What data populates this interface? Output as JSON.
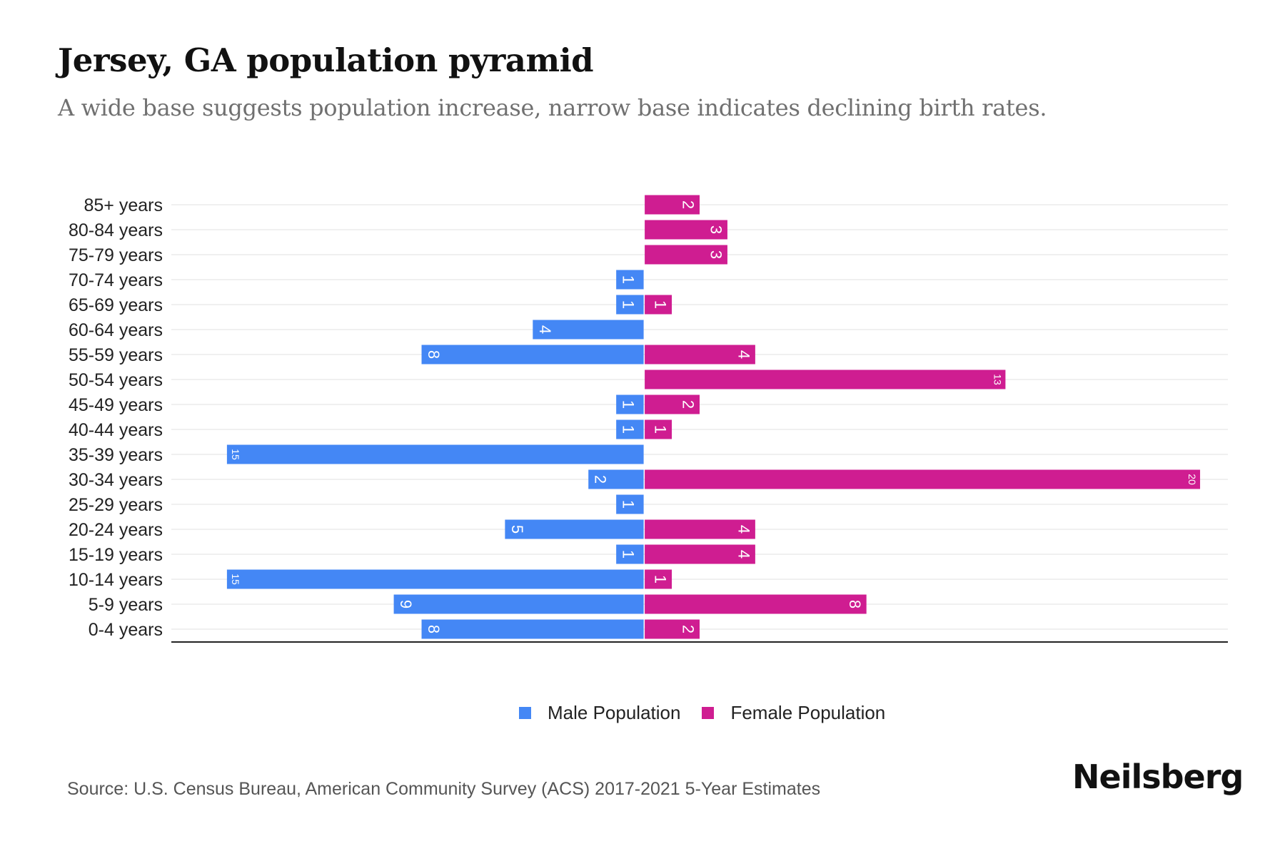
{
  "header": {
    "title": "Jersey, GA population pyramid",
    "subtitle": "A wide base suggests population increase, narrow base indicates declining birth rates."
  },
  "colors": {
    "male": "#4487F5",
    "female": "#CF1D91"
  },
  "chart_data": {
    "type": "bar",
    "orientation": "horizontal-diverging",
    "title": "Jersey, GA population pyramid",
    "subtitle": "A wide base suggests population increase, narrow base indicates declining birth rates.",
    "xlabel": "",
    "ylabel": "",
    "categories": [
      "85+ years",
      "80-84 years",
      "75-79 years",
      "70-74 years",
      "65-69 years",
      "60-64 years",
      "55-59 years",
      "50-54 years",
      "45-49 years",
      "40-44 years",
      "35-39 years",
      "30-34 years",
      "25-29 years",
      "20-24 years",
      "15-19 years",
      "10-14 years",
      "5-9 years",
      "0-4 years"
    ],
    "series": [
      {
        "name": "Male Population",
        "side": "left",
        "values": [
          0,
          0,
          0,
          1,
          1,
          4,
          8,
          0,
          1,
          1,
          15,
          2,
          1,
          5,
          1,
          15,
          9,
          8
        ]
      },
      {
        "name": "Female Population",
        "side": "right",
        "values": [
          2,
          3,
          3,
          0,
          1,
          0,
          4,
          13,
          2,
          1,
          0,
          20,
          0,
          4,
          4,
          1,
          8,
          2
        ]
      }
    ],
    "xlim": [
      -17,
      21
    ],
    "grid": true,
    "data_labels": true,
    "legend": {
      "position": "bottom-center",
      "entries": [
        "Male Population",
        "Female Population"
      ]
    }
  },
  "footer": {
    "source": "Source: U.S. Census Bureau, American Community Survey (ACS) 2017-2021 5-Year Estimates",
    "logo": "Neilsberg"
  }
}
